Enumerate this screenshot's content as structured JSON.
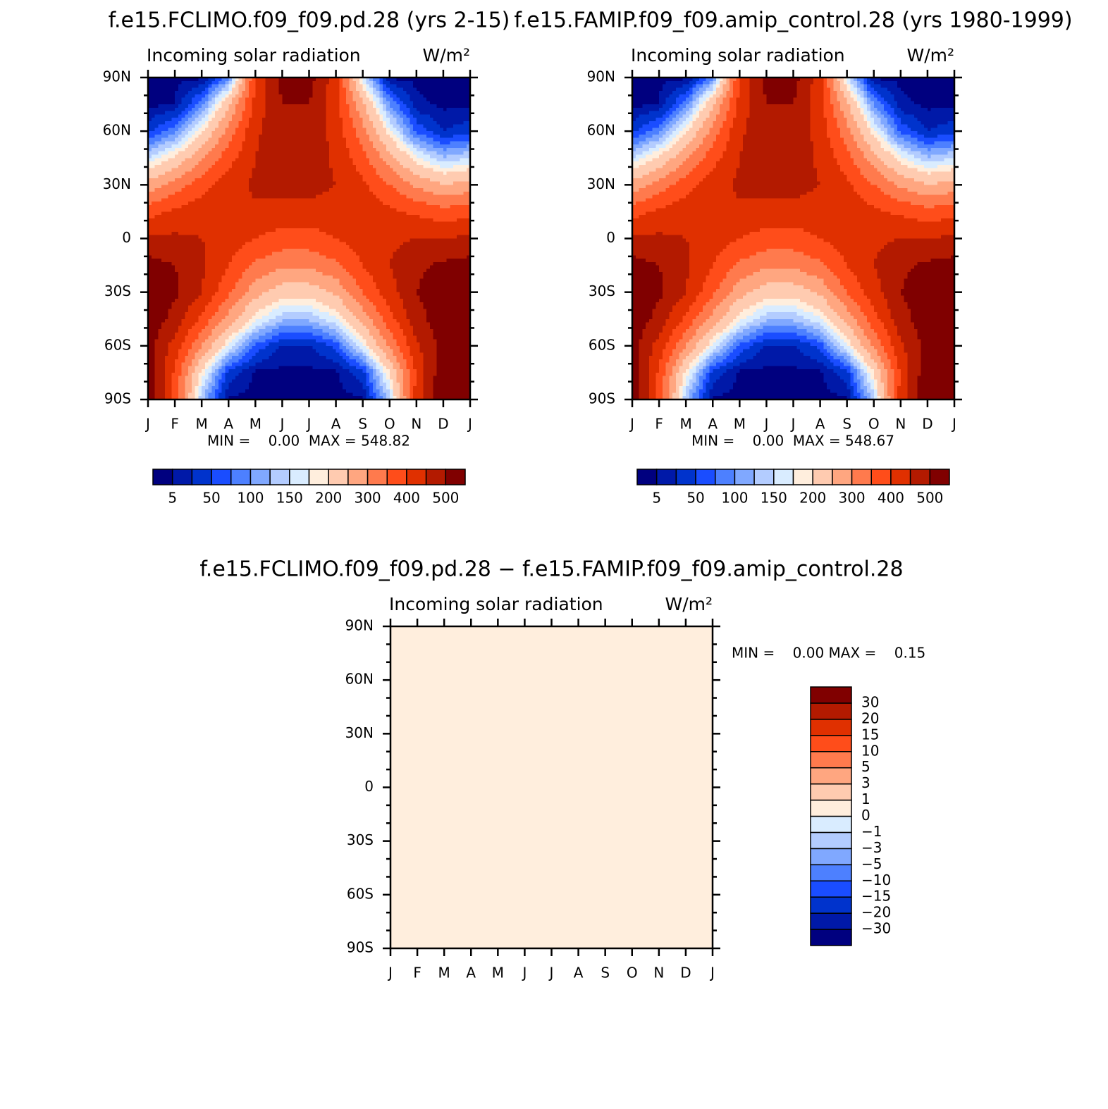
{
  "chart_data": [
    {
      "type": "contour",
      "title": "f.e15.FCLIMO.f09_f09.pd.28 (yrs 2-15)",
      "subtitle": "Incoming solar radiation",
      "units": "W/m²",
      "stats_text": "MIN =    0.00  MAX = 548.82",
      "categories": [
        "J",
        "F",
        "M",
        "A",
        "M",
        "J",
        "J",
        "A",
        "S",
        "O",
        "N",
        "D",
        "J"
      ],
      "ylim": [
        -90,
        90
      ],
      "yticks": [
        {
          "value": 90,
          "label": "90N"
        },
        {
          "value": 60,
          "label": "60N"
        },
        {
          "value": 30,
          "label": "30N"
        },
        0,
        {
          "value": -30,
          "label": "30S"
        },
        {
          "value": -60,
          "label": "60S"
        },
        {
          "value": -90,
          "label": "90S"
        }
      ],
      "lat": [
        90,
        75,
        60,
        45,
        30,
        15,
        0,
        -15,
        -30,
        -45,
        -60,
        -75,
        -90
      ],
      "z": [
        [
          0,
          0,
          0,
          90,
          400,
          515,
          520,
          420,
          160,
          0,
          0,
          0,
          0
        ],
        [
          0,
          5,
          90,
          240,
          420,
          500,
          500,
          420,
          260,
          100,
          10,
          0,
          0
        ],
        [
          40,
          90,
          190,
          320,
          440,
          490,
          490,
          430,
          320,
          180,
          70,
          25,
          40
        ],
        [
          150,
          210,
          290,
          380,
          450,
          480,
          480,
          440,
          370,
          270,
          180,
          130,
          150
        ],
        [
          270,
          320,
          380,
          430,
          460,
          470,
          470,
          450,
          410,
          350,
          290,
          250,
          270
        ],
        [
          380,
          410,
          430,
          440,
          440,
          430,
          430,
          430,
          430,
          410,
          390,
          370,
          380
        ],
        [
          460,
          460,
          450,
          430,
          400,
          380,
          380,
          400,
          430,
          440,
          450,
          450,
          460
        ],
        [
          520,
          500,
          460,
          400,
          340,
          310,
          310,
          340,
          400,
          450,
          490,
          510,
          520
        ],
        [
          540,
          510,
          450,
          360,
          270,
          220,
          220,
          260,
          350,
          430,
          500,
          530,
          540
        ],
        [
          540,
          480,
          390,
          280,
          180,
          130,
          130,
          170,
          270,
          380,
          480,
          530,
          540
        ],
        [
          520,
          430,
          300,
          170,
          70,
          20,
          20,
          60,
          170,
          310,
          440,
          520,
          520
        ],
        [
          540,
          390,
          190,
          40,
          0,
          0,
          0,
          0,
          40,
          200,
          410,
          540,
          540
        ],
        [
          549,
          380,
          130,
          0,
          0,
          0,
          0,
          0,
          0,
          140,
          420,
          548,
          549
        ]
      ],
      "levels": [
        5,
        25,
        50,
        75,
        100,
        125,
        150,
        175,
        200,
        250,
        300,
        350,
        400,
        450,
        500
      ],
      "label_every": 2,
      "colorbar": "horizontal",
      "colors": [
        "#00007f",
        "#0019a8",
        "#0033cc",
        "#1a4dff",
        "#4d80ff",
        "#80a8ff",
        "#b3ccff",
        "#d9ecff",
        "#ffeedd",
        "#ffcbb0",
        "#ffa680",
        "#ff7a4d",
        "#ff4d1a",
        "#e03000",
        "#b31a00",
        "#800000"
      ]
    },
    {
      "type": "contour",
      "title": "f.e15.FAMIP.f09_f09.amip_control.28 (yrs 1980-1999)",
      "subtitle": "Incoming solar radiation",
      "units": "W/m²",
      "stats_text": "MIN =    0.00  MAX = 548.67",
      "categories": [
        "J",
        "F",
        "M",
        "A",
        "M",
        "J",
        "J",
        "A",
        "S",
        "O",
        "N",
        "D",
        "J"
      ],
      "ylim": [
        -90,
        90
      ],
      "yticks": [
        {
          "value": 90,
          "label": "90N"
        },
        {
          "value": 60,
          "label": "60N"
        },
        {
          "value": 30,
          "label": "30N"
        },
        0,
        {
          "value": -30,
          "label": "30S"
        },
        {
          "value": -60,
          "label": "60S"
        },
        {
          "value": -90,
          "label": "90S"
        }
      ],
      "lat": [
        90,
        75,
        60,
        45,
        30,
        15,
        0,
        -15,
        -30,
        -45,
        -60,
        -75,
        -90
      ],
      "z": [
        [
          0,
          0,
          0,
          90,
          400,
          515,
          520,
          420,
          160,
          0,
          0,
          0,
          0
        ],
        [
          0,
          5,
          90,
          240,
          420,
          500,
          500,
          420,
          260,
          100,
          10,
          0,
          0
        ],
        [
          40,
          90,
          190,
          320,
          440,
          490,
          490,
          430,
          320,
          180,
          70,
          25,
          40
        ],
        [
          150,
          210,
          290,
          380,
          450,
          480,
          480,
          440,
          370,
          270,
          180,
          130,
          150
        ],
        [
          270,
          320,
          380,
          430,
          460,
          470,
          470,
          450,
          410,
          350,
          290,
          250,
          270
        ],
        [
          380,
          410,
          430,
          440,
          440,
          430,
          430,
          430,
          430,
          410,
          390,
          370,
          380
        ],
        [
          460,
          460,
          450,
          430,
          400,
          380,
          380,
          400,
          430,
          440,
          450,
          450,
          460
        ],
        [
          520,
          500,
          460,
          400,
          340,
          310,
          310,
          340,
          400,
          450,
          490,
          510,
          520
        ],
        [
          540,
          510,
          450,
          360,
          270,
          220,
          220,
          260,
          350,
          430,
          500,
          530,
          540
        ],
        [
          540,
          480,
          390,
          280,
          180,
          130,
          130,
          170,
          270,
          380,
          480,
          530,
          540
        ],
        [
          520,
          430,
          300,
          170,
          70,
          20,
          20,
          60,
          170,
          310,
          440,
          520,
          520
        ],
        [
          540,
          390,
          190,
          40,
          0,
          0,
          0,
          0,
          40,
          200,
          410,
          540,
          540
        ],
        [
          548,
          380,
          130,
          0,
          0,
          0,
          0,
          0,
          0,
          140,
          420,
          548,
          548
        ]
      ],
      "levels": [
        5,
        25,
        50,
        75,
        100,
        125,
        150,
        175,
        200,
        250,
        300,
        350,
        400,
        450,
        500
      ],
      "label_every": 2,
      "colorbar": "horizontal",
      "colors": [
        "#00007f",
        "#0019a8",
        "#0033cc",
        "#1a4dff",
        "#4d80ff",
        "#80a8ff",
        "#b3ccff",
        "#d9ecff",
        "#ffeedd",
        "#ffcbb0",
        "#ffa680",
        "#ff7a4d",
        "#ff4d1a",
        "#e03000",
        "#b31a00",
        "#800000"
      ]
    },
    {
      "type": "contour",
      "title": "f.e15.FCLIMO.f09_f09.pd.28 − f.e15.FAMIP.f09_f09.amip_control.28",
      "subtitle": "Incoming solar radiation",
      "units": "W/m²",
      "stats_text": "MIN =    0.00 MAX =    0.15",
      "categories": [
        "J",
        "F",
        "M",
        "A",
        "M",
        "J",
        "J",
        "A",
        "S",
        "O",
        "N",
        "D",
        "J"
      ],
      "ylim": [
        -90,
        90
      ],
      "yticks": [
        {
          "value": 90,
          "label": "90N"
        },
        {
          "value": 60,
          "label": "60N"
        },
        {
          "value": 30,
          "label": "30N"
        },
        0,
        {
          "value": -30,
          "label": "30S"
        },
        {
          "value": -60,
          "label": "60S"
        },
        {
          "value": -90,
          "label": "90S"
        }
      ],
      "lat": [
        90,
        -90
      ],
      "z": [
        [
          0,
          0,
          0,
          0,
          0,
          0,
          0,
          0,
          0,
          0,
          0,
          0,
          0
        ],
        [
          0,
          0,
          0,
          0,
          0,
          0,
          0,
          0,
          0,
          0,
          0,
          0,
          0
        ]
      ],
      "levels": [
        {
          "value": -30,
          "label": "−30"
        },
        {
          "value": -20,
          "label": "−20"
        },
        {
          "value": -15,
          "label": "−15"
        },
        {
          "value": -10,
          "label": "−10"
        },
        {
          "value": -5,
          "label": "−5"
        },
        {
          "value": -3,
          "label": "−3"
        },
        {
          "value": -1,
          "label": "−1"
        },
        0,
        1,
        3,
        5,
        10,
        15,
        20,
        30
      ],
      "label_every": 1,
      "colorbar": "vertical",
      "colors": [
        "#00007f",
        "#0019a8",
        "#0033cc",
        "#1a4dff",
        "#4d80ff",
        "#80a8ff",
        "#b3ccff",
        "#d9ecff",
        "#ffeedd",
        "#ffcbb0",
        "#ffa680",
        "#ff7a4d",
        "#ff4d1a",
        "#e03000",
        "#b31a00",
        "#800000"
      ]
    }
  ]
}
